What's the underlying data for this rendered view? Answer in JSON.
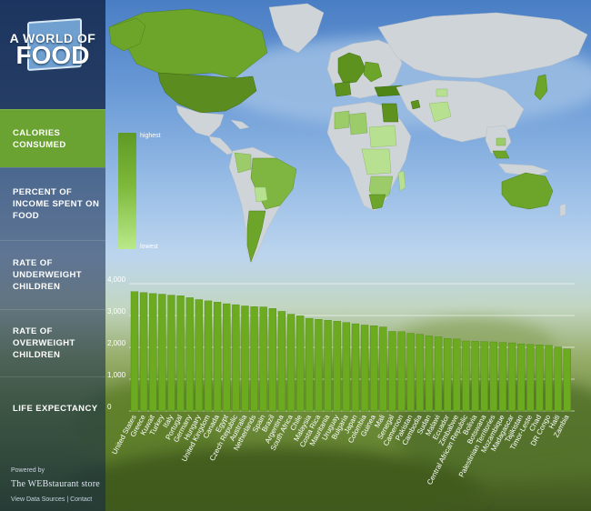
{
  "app": {
    "title_line1": "A WORLD OF",
    "title_line2": "FOOD"
  },
  "nav": {
    "items": [
      {
        "label": "CALORIES CONSUMED",
        "active": true
      },
      {
        "label": "PERCENT OF INCOME SPENT ON FOOD",
        "active": false
      },
      {
        "label": "RATE OF UNDERWEIGHT CHILDREN",
        "active": false
      },
      {
        "label": "RATE OF OVERWEIGHT CHILDREN",
        "active": false
      },
      {
        "label": "LIFE EXPECTANCY",
        "active": false
      }
    ]
  },
  "footer": {
    "powered_by": "Powered by",
    "brand": "The WEBstaurant store",
    "links": "View Data Sources | Contact"
  },
  "legend": {
    "high_label": "highest",
    "low_label": "lowest"
  },
  "colors": {
    "accent": "#6aa332",
    "bar": "#6cab1f",
    "bar_edge": "#4e8a12",
    "land": "#cfd4d9",
    "sidebar": "#1f3c66"
  },
  "chart_data": {
    "type": "bar",
    "title": "",
    "xlabel": "",
    "ylabel": "",
    "ylim": [
      0,
      4000
    ],
    "yticks": [
      "0",
      "1,000",
      "2,000",
      "3,000",
      "4,000"
    ],
    "grid": true,
    "categories": [
      "United States",
      "Greece",
      "Kuwait",
      "Turkey",
      "Italy",
      "Portugal",
      "Germany",
      "Hungary",
      "United Kingdom",
      "Canada",
      "Egypt",
      "Czech Republic",
      "Australia",
      "Netherlands",
      "Spain",
      "Brazil",
      "Argentina",
      "South Africa",
      "Chile",
      "Malaysia",
      "Costa Rica",
      "Mauritania",
      "Uruguay",
      "Bulgaria",
      "Japan",
      "Colombia",
      "Guinea",
      "Mali",
      "Senegal",
      "Cameroon",
      "Pakistan",
      "Cambodia",
      "Sudan",
      "Malawi",
      "Ecuador",
      "Zimbabwe",
      "Central African Republic",
      "Bolivia",
      "Botswana",
      "Palestinian Territories",
      "Mozambique",
      "Madagascar",
      "Tajikistan",
      "Timor-Leste",
      "Chad",
      "DR Congo",
      "Haiti",
      "Zambia"
    ],
    "values": [
      3750,
      3720,
      3690,
      3670,
      3640,
      3620,
      3560,
      3500,
      3460,
      3420,
      3370,
      3340,
      3300,
      3280,
      3270,
      3220,
      3130,
      3040,
      2990,
      2910,
      2880,
      2850,
      2820,
      2780,
      2740,
      2700,
      2680,
      2640,
      2500,
      2490,
      2440,
      2410,
      2360,
      2330,
      2280,
      2260,
      2200,
      2190,
      2180,
      2170,
      2150,
      2140,
      2110,
      2090,
      2080,
      2060,
      2010,
      1950
    ]
  }
}
